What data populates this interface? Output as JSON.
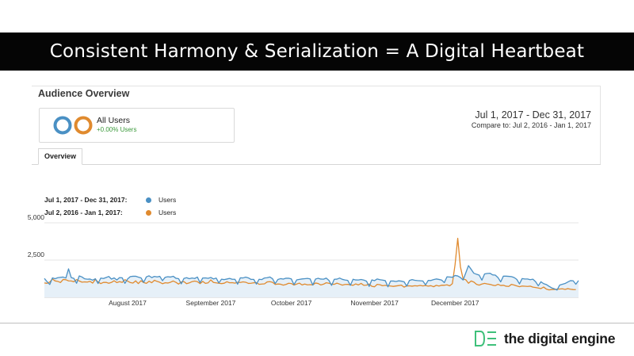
{
  "slide": {
    "title": "Consistent Harmony & Serialization = A Digital Heartbeat"
  },
  "report": {
    "title": "Audience Overview",
    "segment": {
      "name": "All Users",
      "change": "+0.00% Users"
    },
    "date_range": {
      "main": "Jul 1, 2017 - Dec 31, 2017",
      "compare": "Compare to: Jul 2, 2016 - Jan 1, 2017"
    },
    "tab": "Overview",
    "legend": [
      {
        "period": "Jul 1, 2017 - Dec 31, 2017:",
        "metric": "Users",
        "color": "#4a90c4"
      },
      {
        "period": "Jul 2, 2016 - Jan 1, 2017:",
        "metric": "Users",
        "color": "#e08a2e"
      }
    ]
  },
  "colors": {
    "blue": "#4a90c4",
    "orange": "#e08a2e",
    "area_fill": "#e6f0f8",
    "positive": "#3c9a3c",
    "logo_green": "#3ec07a"
  },
  "chart_data": {
    "type": "line",
    "ylim": [
      0,
      5000
    ],
    "yticks": [
      "5,000",
      "2,500"
    ],
    "ytick_values": [
      5000,
      2500
    ],
    "grid": true,
    "xtick_labels": [
      "August 2017",
      "September 2017",
      "October 2017",
      "November 2017",
      "December 2017"
    ],
    "xtick_indices": [
      31,
      62,
      92,
      123,
      153
    ],
    "series": [
      {
        "name": "Users",
        "period": "Jul 1, 2017 - Dec 31, 2017",
        "color": "#4a90c4",
        "filled": true,
        "values": [
          1266,
          1051,
          860,
          1305,
          1251,
          1316,
          1342,
          1359,
          1293,
          1911,
          1326,
          1269,
          944,
          1436,
          1367,
          1242,
          1218,
          1227,
          1151,
          1249,
          927,
          1291,
          1264,
          1330,
          1400,
          1223,
          1303,
          1162,
          1322,
          1306,
          938,
          1232,
          1388,
          1413,
          1416,
          1356,
          1306,
          1004,
          1373,
          1443,
          1323,
          1405,
          1370,
          1406,
          1116,
          1346,
          1384,
          1360,
          1412,
          1279,
          1251,
          904,
          1271,
          1318,
          1251,
          1295,
          1263,
          1359,
          979,
          1297,
          1305,
          1277,
          1330,
          1232,
          1293,
          965,
          1215,
          1188,
          1227,
          1269,
          1210,
          1209,
          883,
          1308,
          1300,
          1356,
          1306,
          1202,
          1203,
          890,
          1211,
          1192,
          1298,
          1316,
          1364,
          1249,
          923,
          1196,
          1253,
          1222,
          1281,
          1281,
          1234,
          851,
          1168,
          1201,
          1234,
          1252,
          1270,
          1239,
          822,
          1223,
          1280,
          1226,
          1215,
          1290,
          1138,
          799,
          1211,
          1219,
          1294,
          1207,
          1166,
          1138,
          806,
          1212,
          1166,
          1163,
          1198,
          1159,
          1085,
          734,
          1171,
          1119,
          1232,
          1182,
          1158,
          1121,
          705,
          1097,
          1094,
          1062,
          1107,
          1087,
          1045,
          753,
          1128,
          1190,
          1142,
          1123,
          1110,
          1099,
          835,
          1135,
          1128,
          1189,
          1233,
          1200,
          1158,
          987,
          1376,
          1365,
          1346,
          1466,
          1433,
          1330,
          1159,
          1642,
          2127,
          1878,
          1618,
          1547,
          1489,
          1150,
          1568,
          1604,
          1617,
          1507,
          1491,
          1325,
          1037,
          1419,
          1419,
          1407,
          1390,
          1330,
          1203,
          899,
          1259,
          1230,
          1229,
          1183,
          1216,
          1051,
          774,
          1045,
          916,
          860,
          741,
          634,
          574,
          488,
          825,
          876,
          928,
          1026,
          1119,
          1110,
          879,
          1124
        ]
      },
      {
        "name": "Users",
        "period": "Jul 2, 2016 - Jan 1, 2017",
        "color": "#e08a2e",
        "filled": false,
        "values": [
          963,
          940,
          1023,
          1231,
          1100,
          1068,
          996,
          1200,
          1180,
          1102,
          1099,
          1046,
          1193,
          1096,
          1016,
          1035,
          1025,
          1072,
          956,
          1200,
          1032,
          922,
          1002,
          1001,
          946,
          1001,
          1111,
          989,
          1052,
          1002,
          1185,
          1085,
          992,
          958,
          1104,
          920,
          1115,
          988,
          938,
          1079,
          981,
          1145,
          1068,
          1008,
          912,
          977,
          960,
          1013,
          1096,
          1009,
          889,
          1033,
          1049,
          915,
          968,
          1053,
          1092,
          1052,
          919,
          1067,
          938,
          971,
          1170,
          999,
          969,
          946,
          920,
          948,
          1048,
          977,
          983,
          949,
          1014,
          996,
          1035,
          1013,
          935,
          945,
          975,
          990,
          870,
          889,
          906,
          1034,
          1051,
          1012,
          865,
          894,
          880,
          819,
          866,
          944,
          926,
          824,
          890,
          954,
          830,
          891,
          836,
          853,
          835,
          961,
          927,
          830,
          883,
          977,
          946,
          888,
          874,
          951,
          887,
          820,
          863,
          867,
          836,
          808,
          899,
          833,
          933,
          806,
          818,
          889,
          736,
          708,
          871,
          845,
          779,
          805,
          777,
          758,
          735,
          762,
          787,
          816,
          686,
          766,
          769,
          748,
          778,
          762,
          800,
          763,
          791,
          751,
          782,
          711,
          805,
          758,
          814,
          809,
          837,
          773,
          919,
          2185,
          3959,
          2049,
          1233,
          1175,
          946,
          1096,
          1025,
          869,
          818,
          889,
          935,
          897,
          868,
          815,
          786,
          874,
          794,
          809,
          747,
          732,
          868,
          825,
          763,
          712,
          756,
          746,
          732,
          749,
          683,
          658,
          625,
          588,
          689,
          555,
          498,
          523,
          526,
          547,
          560,
          571,
          534,
          582,
          543,
          522,
          520
        ]
      }
    ]
  }
}
